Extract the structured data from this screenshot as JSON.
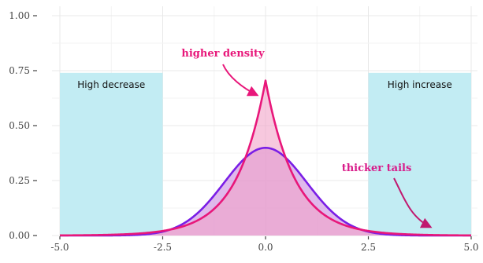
{
  "chart_data": {
    "type": "area",
    "xlim": [
      -5.0,
      5.0
    ],
    "ylim": [
      0.0,
      1.0
    ],
    "x_ticks": [
      -5.0,
      -2.5,
      0.0,
      2.5,
      5.0
    ],
    "x_tick_labels": [
      "-5.0",
      "-2.5",
      "0.0",
      "2.5",
      "5.0"
    ],
    "y_ticks": [
      0.0,
      0.25,
      0.5,
      0.75,
      1.0
    ],
    "y_tick_labels": [
      "0.00",
      "0.25",
      "0.50",
      "0.75",
      "1.00"
    ],
    "grid": true,
    "regions": [
      {
        "label": "High decrease",
        "x": [
          -5.0,
          -2.5
        ],
        "y": [
          0.0,
          0.74
        ],
        "color": "#c2ecf3"
      },
      {
        "label": "High increase",
        "x": [
          2.5,
          5.0
        ],
        "y": [
          0.0,
          0.74
        ],
        "color": "#c2ecf3"
      }
    ],
    "series": [
      {
        "distribution": "laplace",
        "location": 0.0,
        "scale": 0.71,
        "peak": 0.705,
        "line_color": "#e8177a",
        "fill_color": "#f2a4c8"
      },
      {
        "distribution": "normal",
        "mean": 0.0,
        "sd": 1.0,
        "peak": 0.399,
        "line_color": "#7a1ee6",
        "fill_color": "#c98be0"
      }
    ],
    "annotations": [
      {
        "text": "higher density",
        "color": "#e8177a",
        "points_to": [
          0.0,
          0.69
        ]
      },
      {
        "text": "thicker tails",
        "color": "#d81b8a",
        "points_to": [
          3.85,
          0.02
        ]
      }
    ]
  }
}
